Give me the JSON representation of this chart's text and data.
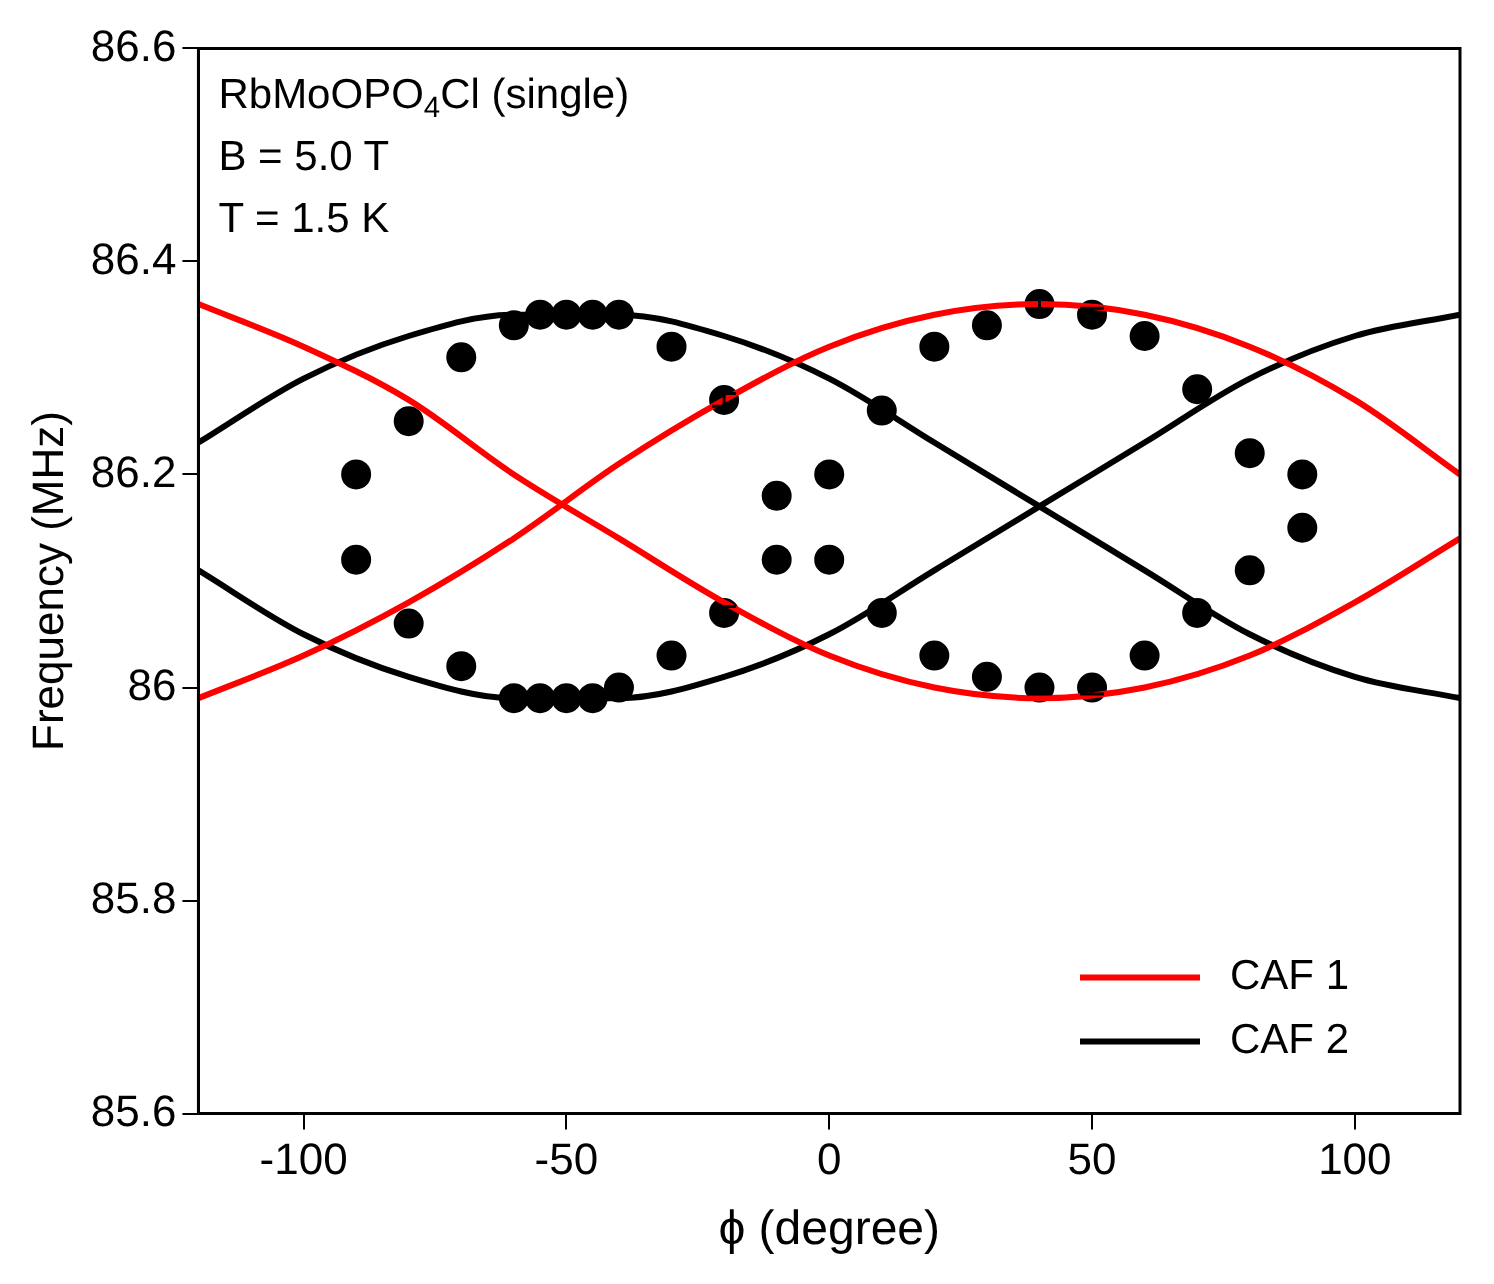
{
  "chart_data": {
    "type": "line",
    "xlabel": "ϕ (degree)",
    "ylabel": "Frequency (MHz)",
    "annotations": [
      "RbMoOPO$_{4}$Cl (single)",
      "B = 5.0 T",
      "T = 1.5 K"
    ],
    "xlim": [
      -120,
      120
    ],
    "xticks": [
      -100,
      -50,
      0,
      50,
      100
    ],
    "ylim": [
      85.6,
      86.6
    ],
    "yticks": [
      85.6,
      85.8,
      86.0,
      86.2,
      86.4,
      86.6
    ],
    "grid": false,
    "legend": "bottom right",
    "line_style": "solid",
    "marker": "none",
    "series": [
      {
        "name": "CAF 1",
        "color": "#ff0000",
        "x": [
          -120,
          -100,
          -80,
          -60,
          -40,
          -20,
          0,
          20,
          40,
          60,
          80,
          100,
          120
        ],
        "values": [
          85.99,
          86.03,
          86.08,
          86.14,
          86.21,
          86.27,
          86.32,
          86.35,
          86.36,
          86.35,
          86.32,
          86.27,
          86.2
        ]
      },
      {
        "color": "#ff0000",
        "x": [
          -120,
          -100,
          -80,
          -60,
          -40,
          -20,
          0,
          20,
          40,
          60,
          80,
          100,
          120
        ],
        "values": [
          86.36,
          86.32,
          86.27,
          86.2,
          86.14,
          86.08,
          86.03,
          86.0,
          85.99,
          86.0,
          86.03,
          86.08,
          86.14
        ]
      },
      {
        "name": "CAF 2",
        "color": "#000000",
        "x": [
          -120,
          -100,
          -80,
          -60,
          -40,
          -20,
          0,
          20,
          40,
          60,
          80,
          100,
          120
        ],
        "values": [
          86.23,
          86.29,
          86.33,
          86.35,
          86.35,
          86.33,
          86.29,
          86.23,
          86.17,
          86.11,
          86.05,
          86.01,
          85.99
        ]
      },
      {
        "color": "#000000",
        "x": [
          -120,
          -100,
          -80,
          -60,
          -40,
          -20,
          0,
          20,
          40,
          60,
          80,
          100,
          120
        ],
        "values": [
          86.11,
          86.05,
          86.01,
          85.99,
          85.99,
          86.01,
          86.05,
          86.11,
          86.17,
          86.23,
          86.29,
          86.33,
          86.35
        ]
      },
      {
        "type": "scatter",
        "marker": "circle",
        "color": "#000000",
        "x": [
          -90,
          -90,
          -80,
          -80,
          -70,
          -70,
          -60,
          -60,
          -55,
          -55,
          -50,
          -50,
          -45,
          -45,
          -40,
          -40,
          -30,
          -30,
          -20,
          -20,
          -10,
          -10,
          0,
          0,
          10,
          10,
          20,
          20,
          30,
          30,
          40,
          40,
          50,
          50,
          60,
          60,
          70,
          70,
          80,
          80,
          90,
          90
        ],
        "values": [
          86.2,
          86.12,
          86.25,
          86.06,
          86.31,
          86.02,
          86.34,
          85.99,
          86.35,
          85.99,
          86.35,
          85.99,
          86.35,
          85.99,
          86.35,
          86.0,
          86.32,
          86.03,
          86.27,
          86.07,
          86.18,
          86.12,
          86.2,
          86.12,
          86.26,
          86.07,
          86.32,
          86.03,
          86.34,
          86.01,
          86.36,
          86.0,
          86.35,
          86.0,
          86.33,
          86.03,
          86.28,
          86.07,
          86.22,
          86.11,
          86.2,
          86.15
        ],
        "errors": [
          0.006,
          0.006,
          0.006,
          0.006,
          0.006,
          0.006,
          0.006,
          0.006,
          0.006,
          0.006,
          0.006,
          0.006,
          0.006,
          0.006,
          0.006,
          0.006,
          0.006,
          0.006,
          0.006,
          0.006,
          0.006,
          0.006,
          0.006,
          0.006,
          0.006,
          0.006,
          0.006,
          0.006,
          0.006,
          0.006,
          0.006,
          0.006,
          0.006,
          0.006,
          0.006,
          0.006,
          0.006,
          0.006,
          0.006,
          0.006,
          0.006,
          0.006
        ]
      }
    ]
  }
}
